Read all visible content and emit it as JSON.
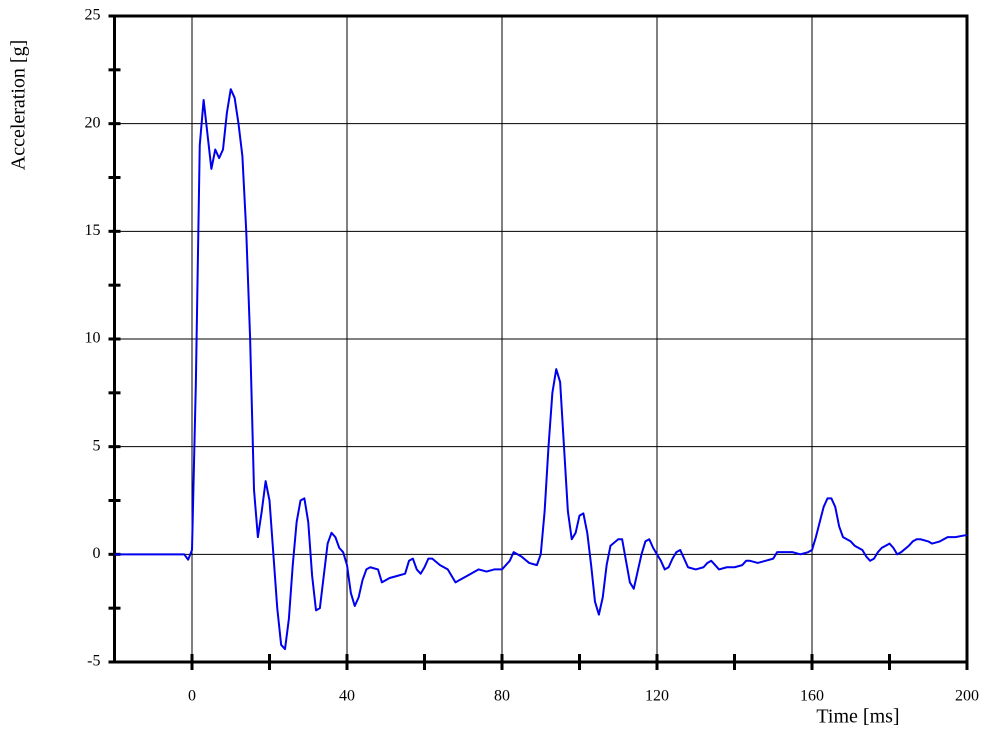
{
  "chart_data": {
    "type": "line",
    "x_label": "Time [ms]",
    "y_label": "Acceleration [g]",
    "x": [
      -20,
      -10,
      -2,
      -1,
      0,
      1,
      2,
      3,
      4,
      5,
      6,
      7,
      8,
      9,
      10,
      11,
      12,
      13,
      14,
      15,
      16,
      17,
      18,
      19,
      20,
      21,
      22,
      23,
      24,
      25,
      26,
      27,
      28,
      29,
      30,
      31,
      32,
      33,
      34,
      35,
      36,
      37,
      38,
      39,
      40,
      41,
      42,
      43,
      44,
      45,
      46,
      48,
      49,
      51,
      53,
      55,
      56,
      57,
      58,
      59,
      60,
      61,
      62,
      64,
      66,
      68,
      69,
      71,
      73,
      74,
      76,
      78,
      80,
      82,
      83,
      85,
      87,
      89,
      90,
      91,
      92,
      93,
      94,
      95,
      96,
      97,
      98,
      99,
      100,
      101,
      102,
      103,
      104,
      105,
      106,
      107,
      108,
      110,
      111,
      112,
      113,
      114,
      115,
      116,
      117,
      118,
      119,
      120,
      121,
      122,
      123,
      124,
      125,
      126,
      127,
      128,
      130,
      132,
      133,
      134,
      135,
      136,
      138,
      140,
      142,
      143,
      144,
      146,
      148,
      150,
      151,
      153,
      155,
      157,
      159,
      160,
      161,
      162,
      163,
      164,
      165,
      166,
      167,
      168,
      170,
      171,
      172,
      173,
      174,
      175,
      176,
      177,
      178,
      179,
      180,
      181,
      182,
      183,
      185,
      186,
      187,
      188,
      190,
      191,
      193,
      195,
      197,
      200
    ],
    "values": [
      0,
      0,
      0,
      -0.25,
      0.2,
      8,
      19,
      21.1,
      19.5,
      17.9,
      18.8,
      18.4,
      18.8,
      20.5,
      21.6,
      21.2,
      20,
      18.5,
      15,
      10,
      3,
      0.8,
      2,
      3.4,
      2.5,
      0,
      -2.5,
      -4.2,
      -4.4,
      -3,
      -0.5,
      1.5,
      2.5,
      2.6,
      1.5,
      -1,
      -2.6,
      -2.5,
      -1,
      0.5,
      1,
      0.8,
      0.3,
      0.1,
      -0.5,
      -1.8,
      -2.4,
      -2,
      -1.2,
      -0.7,
      -0.6,
      -0.7,
      -1.3,
      -1.1,
      -1,
      -0.9,
      -0.3,
      -0.2,
      -0.7,
      -0.9,
      -0.6,
      -0.2,
      -0.2,
      -0.5,
      -0.7,
      -1.3,
      -1.2,
      -1,
      -0.8,
      -0.7,
      -0.8,
      -0.7,
      -0.7,
      -0.3,
      0.1,
      -0.1,
      -0.4,
      -0.5,
      0,
      2,
      5,
      7.5,
      8.6,
      8,
      5,
      2,
      0.7,
      1,
      1.8,
      1.9,
      1,
      -0.5,
      -2.2,
      -2.8,
      -2,
      -0.5,
      0.4,
      0.7,
      0.7,
      -0.3,
      -1.3,
      -1.6,
      -0.8,
      0,
      0.6,
      0.7,
      0.3,
      0,
      -0.3,
      -0.7,
      -0.6,
      -0.2,
      0.1,
      0.2,
      -0.2,
      -0.6,
      -0.7,
      -0.6,
      -0.4,
      -0.3,
      -0.5,
      -0.7,
      -0.6,
      -0.6,
      -0.5,
      -0.3,
      -0.3,
      -0.4,
      -0.3,
      -0.2,
      0.1,
      0.1,
      0.1,
      0,
      0.1,
      0.2,
      0.8,
      1.5,
      2.2,
      2.6,
      2.6,
      2.2,
      1.3,
      0.8,
      0.6,
      0.4,
      0.3,
      0.2,
      -0.1,
      -0.3,
      -0.2,
      0.1,
      0.3,
      0.4,
      0.5,
      0.3,
      0,
      0.1,
      0.4,
      0.6,
      0.7,
      0.7,
      0.6,
      0.5,
      0.6,
      0.8,
      0.8,
      0.9
    ],
    "color": "#0000ee",
    "xlim": [
      -20,
      200
    ],
    "xticks": [
      0,
      40,
      80,
      120,
      160,
      200
    ],
    "ylim": [
      -5,
      25
    ],
    "yticks": [
      -5,
      0,
      5,
      10,
      15,
      20,
      25
    ],
    "grid": true
  }
}
